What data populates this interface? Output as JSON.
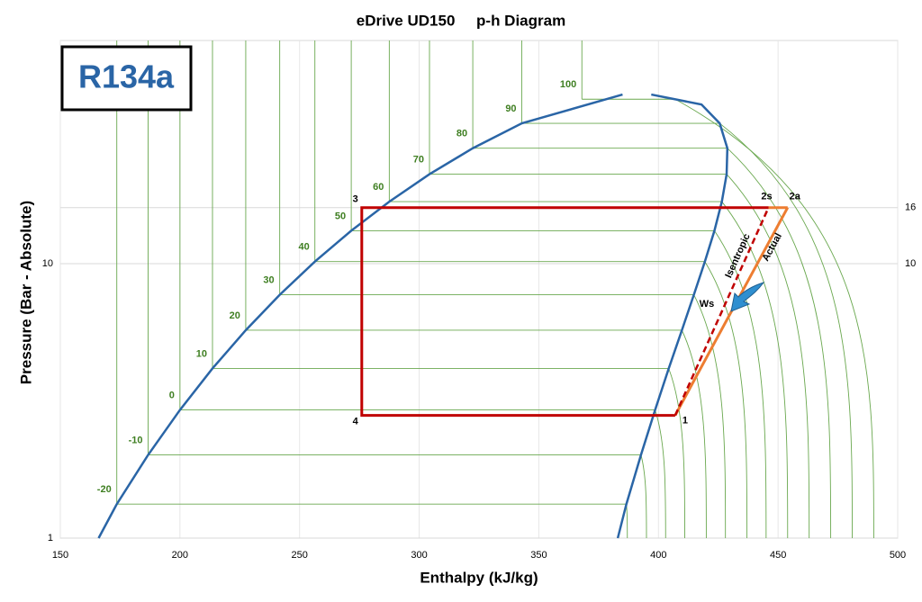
{
  "chart_data": {
    "type": "line",
    "title": "eDrive UD150     p-h Diagram",
    "label_box": "R134a",
    "x_label": "Enthalpy (kJ/kg)",
    "y_label": "Pressure (Bar - Absolute)",
    "xlim": [
      150,
      500
    ],
    "xticks": [
      150,
      200,
      250,
      300,
      350,
      400,
      450,
      500
    ],
    "ylim": [
      1,
      65
    ],
    "yticks": [
      1,
      10
    ],
    "y2lim": [
      1,
      65
    ],
    "y2ticks": [
      10,
      16
    ],
    "log_y": true,
    "grid": true,
    "dome": {
      "color": "#2a65a6",
      "h": [
        166,
        173.6,
        186.7,
        200,
        213.6,
        227.5,
        241.7,
        256.4,
        271.6,
        287.5,
        304.3,
        322.4,
        342.9,
        385,
        null,
        397,
        418,
        425.6,
        428.8,
        428.5,
        426.5,
        423.4,
        419.4,
        414.8,
        409.8,
        404.3,
        398.6,
        392.7,
        386.6,
        383
      ],
      "p": [
        1,
        1.33,
        2.01,
        2.93,
        4.15,
        5.72,
        7.7,
        10.17,
        13.18,
        16.82,
        21.17,
        26.33,
        32.44,
        41.3,
        null,
        41.3,
        38,
        32.44,
        26.33,
        21.17,
        16.82,
        13.18,
        10.17,
        7.7,
        5.72,
        4.15,
        2.93,
        2.01,
        1.33,
        1
      ]
    },
    "isotherm_color": "#6aa84f",
    "isotherms": [
      {
        "t": -20,
        "p": 1.33,
        "hf": 173.6,
        "hg": 386.6,
        "h_low": 387
      },
      {
        "t": -10,
        "p": 2.01,
        "hf": 186.7,
        "hg": 392.7,
        "h_low": 395
      },
      {
        "t": 0,
        "p": 2.93,
        "hf": 200,
        "hg": 398.6,
        "h_low": 403
      },
      {
        "t": 10,
        "p": 4.15,
        "hf": 213.6,
        "hg": 404.3,
        "h_low": 411
      },
      {
        "t": 20,
        "p": 5.72,
        "hf": 227.5,
        "hg": 409.8,
        "h_low": 420
      },
      {
        "t": 30,
        "p": 7.7,
        "hf": 241.7,
        "hg": 414.8,
        "h_low": 428
      },
      {
        "t": 40,
        "p": 10.17,
        "hf": 256.4,
        "hg": 419.4,
        "h_low": 437
      },
      {
        "t": 50,
        "p": 13.18,
        "hf": 271.6,
        "hg": 423.4,
        "h_low": 445
      },
      {
        "t": 60,
        "p": 16.82,
        "hf": 287.5,
        "hg": 426.5,
        "h_low": 454
      },
      {
        "t": 70,
        "p": 21.17,
        "hf": 304.3,
        "hg": 428.5,
        "h_low": 463
      },
      {
        "t": 80,
        "p": 26.33,
        "hf": 322.4,
        "hg": 428.8,
        "h_low": 472
      },
      {
        "t": 90,
        "p": 32.44,
        "hf": 342.9,
        "hg": 425.6,
        "h_low": 481
      },
      {
        "t": 100,
        "p": 39.72,
        "hf": 368,
        "hg": 407,
        "h_low": 490
      }
    ],
    "cycle": {
      "colors": {
        "cycle": "#c00000",
        "actual": "#ed7d31"
      },
      "points": [
        {
          "label": "1",
          "h": 407,
          "p": 2.8
        },
        {
          "label": "2s",
          "h": 446,
          "p": 16
        },
        {
          "label": "2a",
          "h": 454,
          "p": 16
        },
        {
          "label": "3",
          "h": 276,
          "p": 16
        },
        {
          "label": "4",
          "h": 276,
          "p": 2.8
        }
      ],
      "annotations": [
        "Isentropic",
        "Actual",
        "Ws"
      ]
    }
  }
}
